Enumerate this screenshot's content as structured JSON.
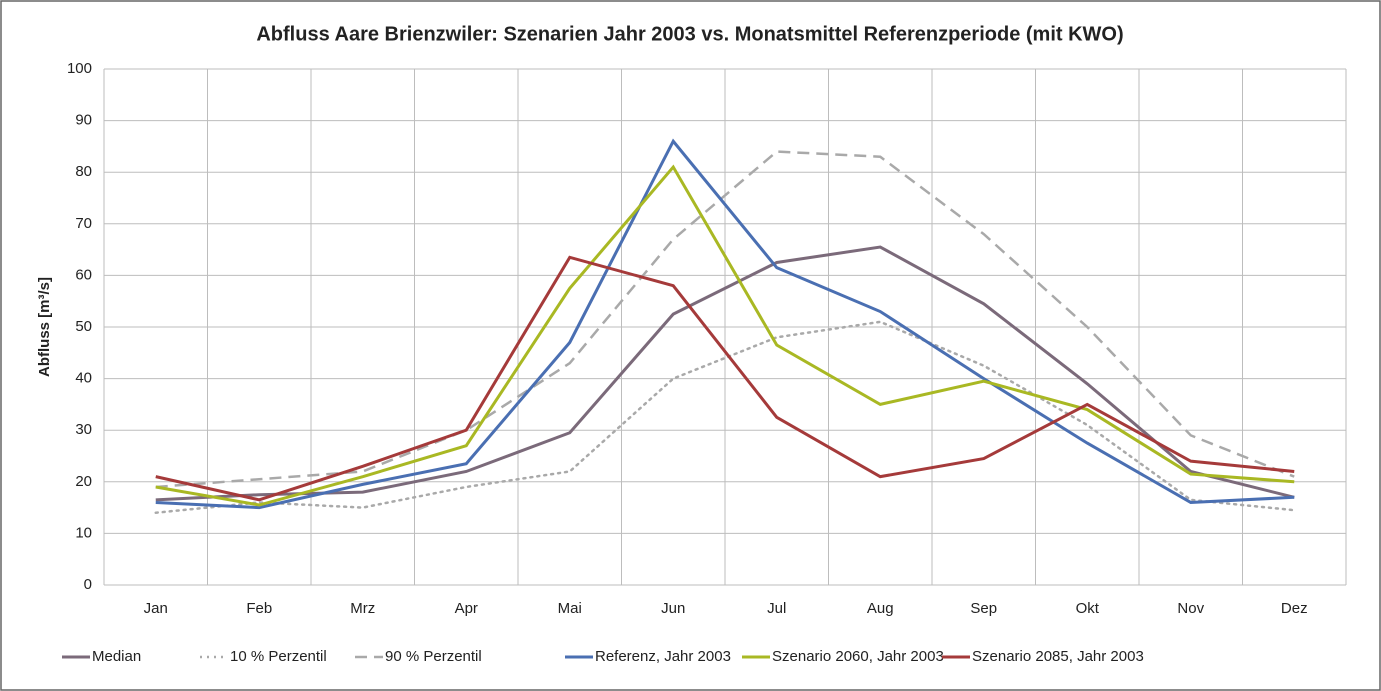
{
  "chart_data": {
    "type": "line",
    "title": "Abfluss Aare Brienzwiler: Szenarien Jahr 2003 vs. Monatsmittel Referenzperiode (mit KWO)",
    "y_label": "Abfluss [m³/s]",
    "categories": [
      "Jan",
      "Feb",
      "Mrz",
      "Apr",
      "Mai",
      "Jun",
      "Jul",
      "Aug",
      "Sep",
      "Okt",
      "Nov",
      "Dez"
    ],
    "series": [
      {
        "name": "Median",
        "color": "#7b6a7a",
        "style": "solid",
        "values": [
          16.5,
          17.5,
          18,
          22,
          29.5,
          52.5,
          62.5,
          65.5,
          54.5,
          39,
          22,
          17
        ]
      },
      {
        "name": "10 % Perzentil",
        "color": "#a9a9a9",
        "style": "dotted",
        "values": [
          14,
          16,
          15,
          19,
          22,
          40,
          48,
          51,
          42.5,
          31,
          16.5,
          14.5
        ]
      },
      {
        "name": "90 % Perzentil",
        "color": "#a9a9a9",
        "style": "dashed",
        "values": [
          19,
          20.5,
          22,
          30,
          43,
          67,
          84,
          83,
          68,
          50,
          29,
          21
        ]
      },
      {
        "name": "Referenz, Jahr 2003",
        "color": "#4a6fb2",
        "style": "solid",
        "values": [
          16,
          15,
          19.5,
          23.5,
          47,
          86,
          61.5,
          53,
          40,
          27.5,
          16,
          17
        ]
      },
      {
        "name": "Szenario 2060, Jahr 2003",
        "color": "#a9b823",
        "style": "solid",
        "values": [
          19,
          15.5,
          21,
          27,
          57.5,
          81,
          46.5,
          35,
          39.5,
          34,
          21.5,
          20
        ]
      },
      {
        "name": "Szenario 2085, Jahr 2003",
        "color": "#a53a3a",
        "style": "solid",
        "values": [
          21,
          16.5,
          23,
          30,
          63.5,
          58,
          32.5,
          21,
          24.5,
          35,
          24,
          22
        ]
      }
    ],
    "ylim": [
      0,
      100
    ],
    "yticks": [
      0,
      10,
      20,
      30,
      40,
      50,
      60,
      70,
      80,
      90,
      100
    ],
    "grid": true,
    "legend": "bottom"
  }
}
